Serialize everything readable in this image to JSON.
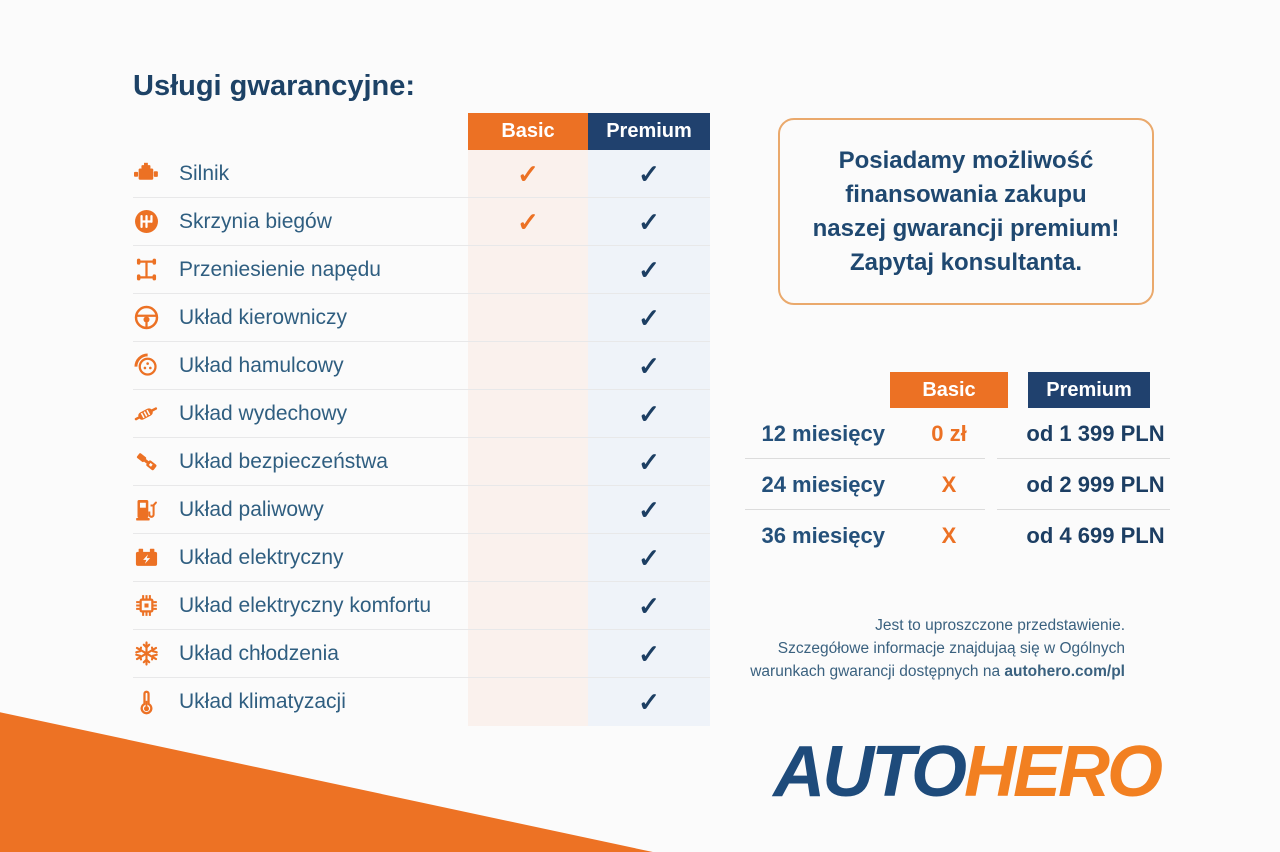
{
  "colors": {
    "orange": "#EC7124",
    "navy": "#20416E",
    "diagonal_orange": "#ED7224",
    "label_blue": "#2F5E80",
    "dark_navy": "#1C3E63",
    "basic_column_bg": "#FAF1ED",
    "premium_column_bg": "#EFF3F9"
  },
  "title": "Usługi gwarancyjne:",
  "comparison": {
    "columns": [
      "Basic",
      "Premium"
    ],
    "check_mark": "✓",
    "rows": [
      {
        "label": "Silnik",
        "icon": "engine-icon",
        "basic": true,
        "premium": true
      },
      {
        "label": "Skrzynia biegów",
        "icon": "gearbox-icon",
        "basic": true,
        "premium": true
      },
      {
        "label": "Przeniesienie napędu",
        "icon": "drivetrain-icon",
        "basic": false,
        "premium": true
      },
      {
        "label": "Układ kierowniczy",
        "icon": "steering-wheel-icon",
        "basic": false,
        "premium": true
      },
      {
        "label": "Układ hamulcowy",
        "icon": "brake-disc-icon",
        "basic": false,
        "premium": true
      },
      {
        "label": "Układ wydechowy",
        "icon": "exhaust-icon",
        "basic": false,
        "premium": true
      },
      {
        "label": "Układ bezpieczeństwa",
        "icon": "seatbelt-icon",
        "basic": false,
        "premium": true
      },
      {
        "label": "Układ paliwowy",
        "icon": "fuel-pump-icon",
        "basic": false,
        "premium": true
      },
      {
        "label": "Układ elektryczny",
        "icon": "car-battery-icon",
        "basic": false,
        "premium": true
      },
      {
        "label": "Układ elektryczny komfortu",
        "icon": "chip-icon",
        "basic": false,
        "premium": true
      },
      {
        "label": "Układ chłodzenia",
        "icon": "snowflake-icon",
        "basic": false,
        "premium": true
      },
      {
        "label": "Układ klimatyzacji",
        "icon": "thermometer-icon",
        "basic": false,
        "premium": true
      }
    ]
  },
  "promo_box": {
    "lines": [
      "Posiadamy możliwość",
      "finansowania zakupu",
      "naszej gwarancji premium!",
      "Zapytaj konsultanta."
    ]
  },
  "pricing": {
    "columns": [
      "Basic",
      "Premium"
    ],
    "rows": [
      {
        "period": "12 miesięcy",
        "basic": "0 zł",
        "premium": "od 1 399 PLN"
      },
      {
        "period": "24 miesięcy",
        "basic": "X",
        "premium": "od 2 999 PLN"
      },
      {
        "period": "36 miesięcy",
        "basic": "X",
        "premium": "od 4 699 PLN"
      }
    ]
  },
  "disclaimer": {
    "line1": "Jest to uproszczone przedstawienie.",
    "line2": "Szczegółowe informacje znajdujaą się w Ogólnych",
    "line3_prefix": "warunkach gwarancji dostępnych na ",
    "line3_bold": "autohero.com/pl"
  },
  "logo": {
    "part1": "AUTO",
    "part2": "HERO"
  }
}
